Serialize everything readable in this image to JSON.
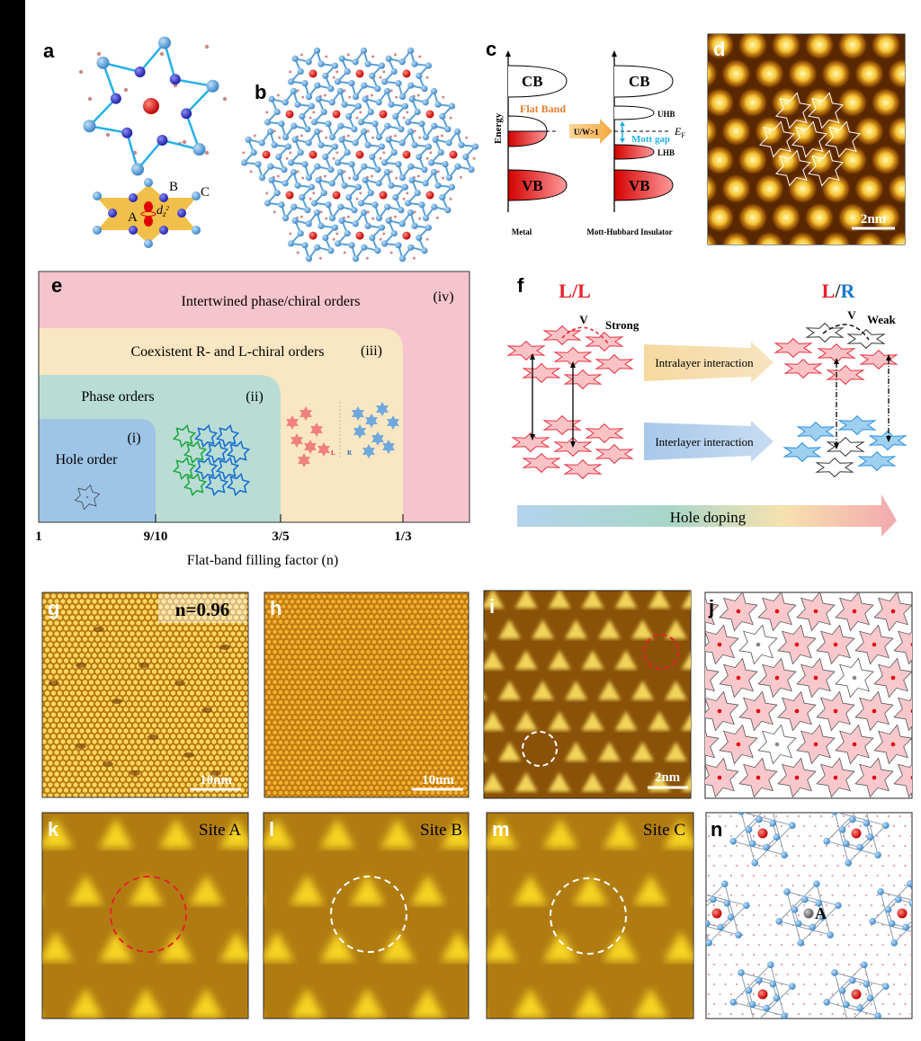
{
  "panel_labels": {
    "a": "a",
    "b": "b",
    "c": "c",
    "d": "d",
    "e": "e",
    "f": "f",
    "g": "g",
    "h": "h",
    "i": "i",
    "j": "j",
    "k": "k",
    "l": "l",
    "m": "m",
    "n": "n"
  },
  "colors": {
    "star_pink": "#f9c8cc",
    "star_red": "#e8453c",
    "star_blue": "#9fd0f0",
    "stm_gold": "#e0a020",
    "phase_iv": "#f5c4cc",
    "phase_iii": "#f9e6c2",
    "phase_ii": "#b9ddd5",
    "phase_i": "#9ec4e6"
  },
  "a": {
    "site_a": "A",
    "site_b": "B",
    "site_c": "C",
    "orbital_d": "d",
    "orbital_sub": "z",
    "orbital_sup": "2"
  },
  "c": {
    "cb": "CB",
    "vb": "VB",
    "flat_band": "Flat Band",
    "ratio": "U/W>1",
    "uhb": "UHB",
    "lhb": "LHB",
    "mott_gap": "Mott gap",
    "ef": "E",
    "ef_sub": "F",
    "energy": "Energy",
    "metal": "Metal",
    "insulator": "Mott-Hubbard Insulator"
  },
  "d": {
    "scale_bar": "2nm"
  },
  "e": {
    "phase_iv": "Intertwined phase/chiral orders",
    "num_iv": "(iv)",
    "phase_iii": "Coexistent R- and L-chiral orders",
    "num_iii": "(iii)",
    "phase_ii": "Phase orders",
    "num_ii": "(ii)",
    "phase_i": "Hole order",
    "num_i": "(i)",
    "chiral_l": "L",
    "chiral_r": "R",
    "ticks": [
      "1",
      "9/10",
      "3/5",
      "1/3"
    ],
    "xlabel": "Flat-band filling factor (n)"
  },
  "f": {
    "left_title_1": "L",
    "left_title_sep": "/",
    "left_title_2": "L",
    "right_title_1": "L",
    "right_title_sep": "/",
    "right_title_2": "R",
    "v_left": "V",
    "strong": "Strong",
    "v_right": "V",
    "weak": "Weak",
    "intralayer": "Intralayer interaction",
    "interlayer": "Interlayer interaction",
    "hole_doping": "Hole doping"
  },
  "g": {
    "filling": "n=0.96",
    "scale_bar": "10nm"
  },
  "h": {
    "scale_bar": "10nm"
  },
  "i": {
    "scale_bar": "2nm"
  },
  "k": {
    "site": "Site A"
  },
  "l": {
    "site": "Site B"
  },
  "m": {
    "site": "Site C"
  },
  "n": {
    "site": "A"
  }
}
